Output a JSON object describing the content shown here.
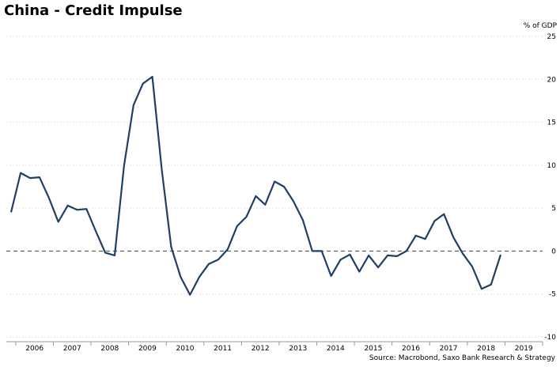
{
  "title": "China - Credit Impulse",
  "source": "Source: Macrobond, Saxo Bank Research & Strategy",
  "chart_data": {
    "type": "line",
    "title": "China - Credit Impulse",
    "ylabel": "% of GDP",
    "xlabel": "",
    "ylim": [
      -10,
      25
    ],
    "yticks": [
      -10,
      -5,
      0,
      5,
      10,
      15,
      20,
      25
    ],
    "y_axis_position": "right",
    "x_range": [
      2005.75,
      2020.0
    ],
    "xtick_labels": [
      "2006",
      "2007",
      "2008",
      "2009",
      "2010",
      "2011",
      "2012",
      "2013",
      "2014",
      "2015",
      "2016",
      "2017",
      "2018",
      "2019"
    ],
    "grid": true,
    "zero_line": "dashed",
    "line_color": "#1f3f66",
    "series": [
      {
        "name": "",
        "x": [
          2005.88,
          2006.13,
          2006.38,
          2006.63,
          2006.88,
          2007.13,
          2007.38,
          2007.63,
          2007.88,
          2008.13,
          2008.38,
          2008.63,
          2008.88,
          2009.13,
          2009.38,
          2009.63,
          2009.88,
          2010.13,
          2010.38,
          2010.63,
          2010.88,
          2011.13,
          2011.38,
          2011.63,
          2011.88,
          2012.13,
          2012.38,
          2012.63,
          2012.88,
          2013.13,
          2013.38,
          2013.63,
          2013.88,
          2014.13,
          2014.38,
          2014.63,
          2014.88,
          2015.13,
          2015.38,
          2015.63,
          2015.88,
          2016.13,
          2016.38,
          2016.63,
          2016.88,
          2017.13,
          2017.38,
          2017.63,
          2017.88,
          2018.13,
          2018.38,
          2018.63,
          2018.88,
          2019.13
        ],
        "y": [
          4.6,
          9.1,
          8.5,
          8.6,
          6.2,
          3.4,
          5.3,
          4.8,
          4.9,
          2.3,
          -0.2,
          -0.5,
          10.0,
          17.0,
          19.5,
          20.3,
          9.5,
          0.5,
          -3.0,
          -5.1,
          -3.0,
          -1.5,
          -1.0,
          0.2,
          2.9,
          4.0,
          6.4,
          5.4,
          8.1,
          7.5,
          5.8,
          3.6,
          0.0,
          0.0,
          -2.9,
          -1.0,
          -0.4,
          -2.4,
          -0.5,
          -1.9,
          -0.5,
          -0.6,
          0.0,
          1.8,
          1.4,
          3.5,
          4.3,
          1.6,
          -0.3,
          -1.8,
          -4.4,
          -3.9,
          -0.5,
          null
        ]
      }
    ]
  }
}
